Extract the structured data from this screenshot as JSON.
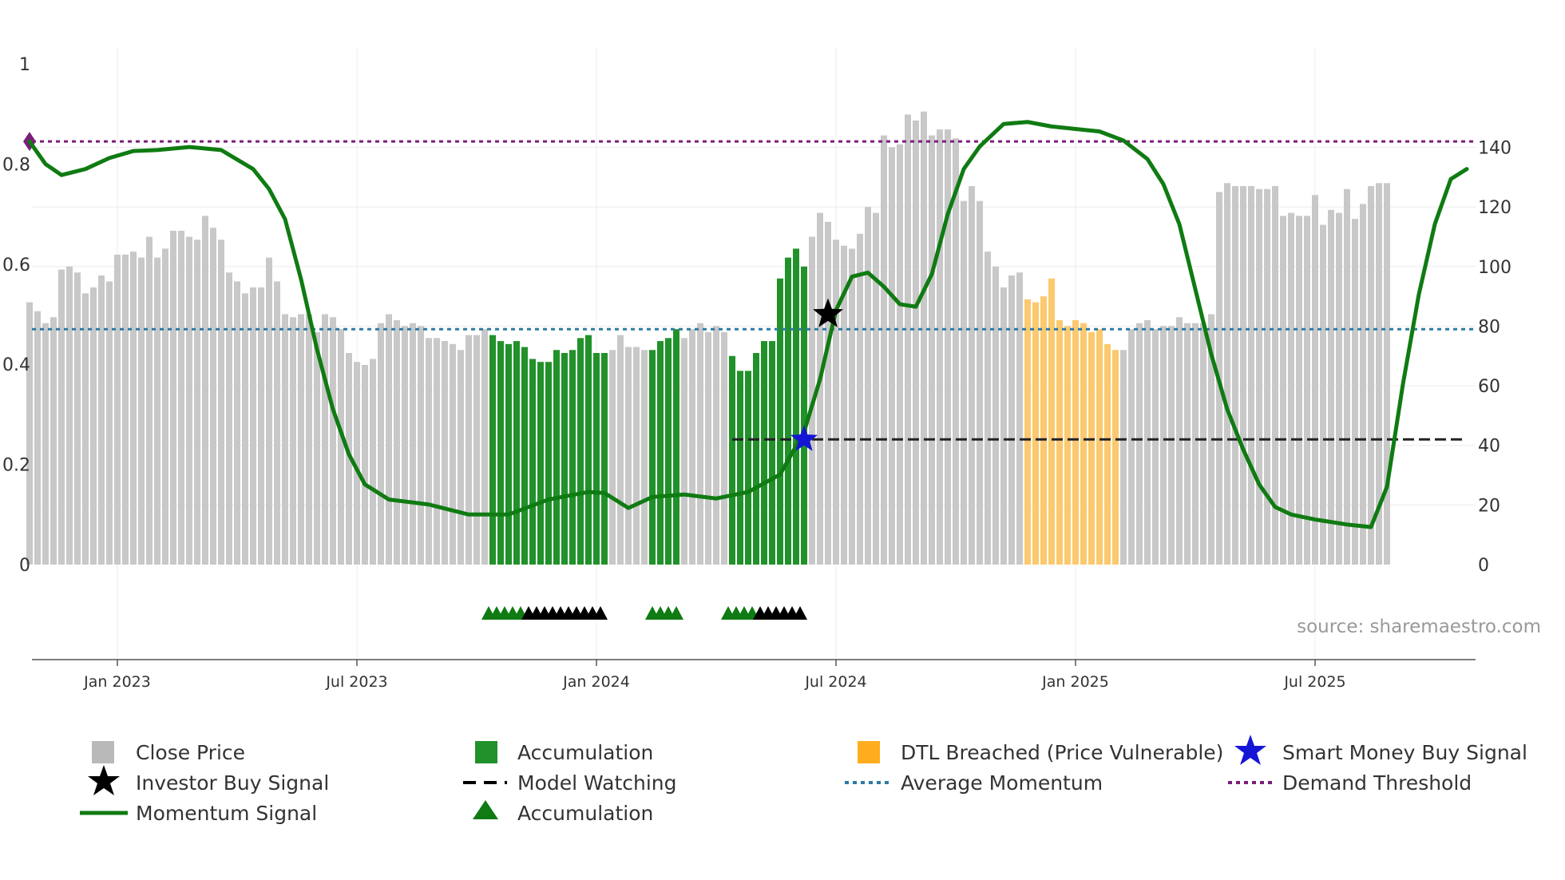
{
  "chart_data": {
    "type": "bar+line",
    "source_label": "source: sharemaestro.com",
    "left_axis": {
      "range": [
        0,
        1
      ],
      "ticks": [
        0,
        0.2,
        0.4,
        0.6,
        0.8,
        1
      ],
      "tick_labels": [
        "0",
        "0.2",
        "0.4",
        "0.6",
        "0.8",
        "1"
      ]
    },
    "right_axis": {
      "range": [
        0,
        168
      ],
      "ticks": [
        0,
        20,
        40,
        60,
        80,
        100,
        120,
        140
      ],
      "tick_labels": [
        "0",
        "20",
        "40",
        "60",
        "80",
        "100",
        "120",
        "140"
      ]
    },
    "x_ticks": [
      {
        "week": 11,
        "label": "Jan 2023"
      },
      {
        "week": 41,
        "label": "Jul 2023"
      },
      {
        "week": 71,
        "label": "Jan 2024"
      },
      {
        "week": 101,
        "label": "Jul 2024"
      },
      {
        "week": 131,
        "label": "Jan 2025"
      },
      {
        "week": 161,
        "label": "Jul 2025"
      }
    ],
    "close_price": [
      88,
      85,
      81,
      83,
      99,
      100,
      98,
      91,
      93,
      97,
      95,
      104,
      104,
      105,
      103,
      110,
      103,
      106,
      112,
      112,
      110,
      109,
      117,
      113,
      109,
      98,
      95,
      91,
      93,
      93,
      103,
      95,
      84,
      83,
      84,
      84,
      78,
      84,
      83,
      79,
      71,
      68,
      67,
      69,
      81,
      84,
      82,
      80,
      81,
      80,
      76,
      76,
      75,
      74,
      72,
      77,
      77,
      79,
      77,
      75,
      74,
      75,
      73,
      69,
      68,
      68,
      72,
      71,
      72,
      76,
      77,
      71,
      71,
      72,
      77,
      73,
      73,
      72,
      72,
      75,
      76,
      79,
      76,
      79,
      81,
      78,
      80,
      78,
      70,
      65,
      65,
      71,
      75,
      75,
      96,
      103,
      106,
      100,
      110,
      118,
      115,
      109,
      107,
      106,
      111,
      120,
      118,
      144,
      140,
      141,
      151,
      149,
      152,
      144,
      146,
      146,
      143,
      122,
      127,
      122,
      105,
      100,
      93,
      97,
      98,
      89,
      88,
      90,
      96,
      82,
      80,
      82,
      81,
      78,
      79,
      74,
      72,
      72,
      79,
      81,
      82,
      79,
      80,
      80,
      83,
      81,
      81,
      81,
      84,
      125,
      128,
      127,
      127,
      127,
      126,
      126,
      127,
      117,
      118
    ],
    "close_price_extra": [
      117,
      117,
      124,
      114,
      119,
      118,
      126,
      116,
      121,
      127,
      128,
      128
    ],
    "accumulation_ranges": [
      [
        58,
        72
      ],
      [
        78,
        81
      ],
      [
        88,
        97
      ]
    ],
    "dtl_breached_range": [
      125,
      136
    ],
    "momentum": [
      [
        0,
        0.845
      ],
      [
        2,
        0.8
      ],
      [
        4,
        0.778
      ],
      [
        7,
        0.79
      ],
      [
        10,
        0.812
      ],
      [
        13,
        0.826
      ],
      [
        16,
        0.828
      ],
      [
        20,
        0.834
      ],
      [
        24,
        0.828
      ],
      [
        28,
        0.79
      ],
      [
        30,
        0.75
      ],
      [
        32,
        0.69
      ],
      [
        34,
        0.57
      ],
      [
        36,
        0.43
      ],
      [
        38,
        0.31
      ],
      [
        40,
        0.22
      ],
      [
        42,
        0.16
      ],
      [
        45,
        0.13
      ],
      [
        50,
        0.12
      ],
      [
        55,
        0.1
      ],
      [
        60,
        0.1
      ],
      [
        65,
        0.13
      ],
      [
        70,
        0.145
      ],
      [
        72,
        0.143
      ],
      [
        75,
        0.113
      ],
      [
        78,
        0.135
      ],
      [
        82,
        0.14
      ],
      [
        86,
        0.132
      ],
      [
        90,
        0.145
      ],
      [
        94,
        0.18
      ],
      [
        97,
        0.265
      ],
      [
        99,
        0.37
      ],
      [
        101,
        0.508
      ],
      [
        103,
        0.575
      ],
      [
        105,
        0.583
      ],
      [
        107,
        0.555
      ],
      [
        109,
        0.52
      ],
      [
        111,
        0.515
      ],
      [
        113,
        0.58
      ],
      [
        115,
        0.7
      ],
      [
        117,
        0.79
      ],
      [
        119,
        0.835
      ],
      [
        122,
        0.88
      ],
      [
        125,
        0.884
      ],
      [
        128,
        0.875
      ],
      [
        131,
        0.87
      ],
      [
        134,
        0.865
      ],
      [
        137,
        0.847
      ],
      [
        140,
        0.81
      ],
      [
        142,
        0.76
      ],
      [
        144,
        0.68
      ],
      [
        146,
        0.55
      ],
      [
        148,
        0.42
      ],
      [
        150,
        0.31
      ],
      [
        152,
        0.23
      ],
      [
        154,
        0.16
      ],
      [
        156,
        0.115
      ],
      [
        158,
        0.1
      ],
      [
        161,
        0.09
      ],
      [
        165,
        0.08
      ],
      [
        168,
        0.075
      ],
      [
        170,
        0.155
      ],
      [
        172,
        0.36
      ],
      [
        174,
        0.54
      ],
      [
        176,
        0.68
      ],
      [
        178,
        0.77
      ],
      [
        180,
        0.79
      ]
    ],
    "average_momentum": 0.47,
    "demand_threshold": 0.845,
    "model_watching": {
      "level": 0.25,
      "start_week": 88,
      "end_week": 180
    },
    "smart_money_buy_signal": {
      "week": 97,
      "value": 0.25
    },
    "investor_buy_signal": {
      "week": 100,
      "value": 0.5
    },
    "accumulation_markers": [
      57.5,
      58.5,
      59.5,
      60.5,
      61.5,
      62.5,
      63.5,
      64.5,
      65.5,
      66.5,
      67.5,
      68.5,
      69.5,
      70.5,
      71.5,
      78,
      79,
      80,
      81,
      87.5,
      88.5,
      89.5,
      90.5,
      91.5,
      92.5,
      93.5,
      94.5,
      95.5,
      96.5
    ],
    "colors": {
      "close_price": "#c8c8c8",
      "accumulation": "#21912a",
      "dtl": "#fcc96e",
      "momentum": "#0f7b12",
      "average_momentum": "#2e7ba3",
      "demand_threshold": "#7a1f7a",
      "model_watching": "#222222",
      "smart_money": "#1515d6",
      "investor": "#000000"
    }
  },
  "legend": {
    "close_price": "Close Price",
    "accumulation_bar": "Accumulation",
    "dtl_breached": "DTL Breached (Price Vulnerable)",
    "smart_money": "Smart Money Buy Signal",
    "investor_buy": "Investor Buy Signal",
    "model_watching": "Model Watching",
    "average_momentum": "Average Momentum",
    "demand_threshold": "Demand Threshold",
    "momentum_signal": "Momentum Signal",
    "accumulation_marker": "Accumulation"
  }
}
